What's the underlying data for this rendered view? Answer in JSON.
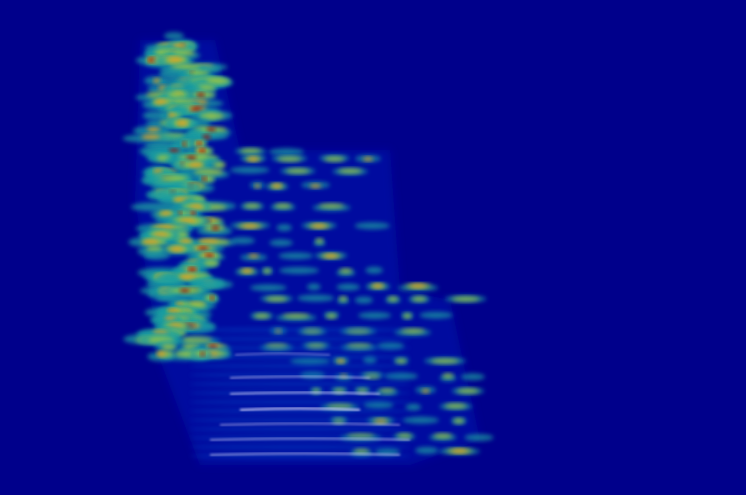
{
  "image": {
    "subject": "spectrogram-heatmap",
    "colormap": "jet",
    "background_color": "#00008B",
    "palette": {
      "low": "#00008B",
      "mid_low": "#0050C8",
      "mid": "#1FA0A0",
      "mid_high": "#A8C83A",
      "high": "#E0A020",
      "peak": "#A00000",
      "glint": "#E6E2FF"
    }
  }
}
